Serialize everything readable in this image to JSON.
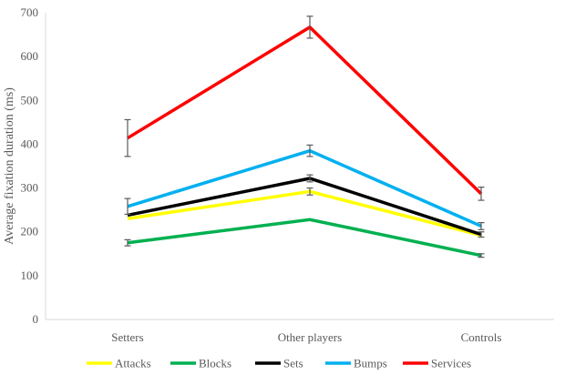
{
  "chart_data": {
    "type": "line",
    "title": "",
    "xlabel": "",
    "ylabel": "Average fixation duration (ms)",
    "categories": [
      "Setters",
      "Other players",
      "Controls"
    ],
    "ylim": [
      0,
      700
    ],
    "yticks": [
      0,
      100,
      200,
      300,
      400,
      500,
      600,
      700
    ],
    "grid": false,
    "legend_position": "bottom",
    "series": [
      {
        "name": "Attacks",
        "color": "#FFFF00",
        "values": [
          230,
          292,
          192
        ],
        "errors": [
          0,
          8,
          0
        ]
      },
      {
        "name": "Blocks",
        "color": "#00B050",
        "values": [
          175,
          228,
          146
        ],
        "errors": [
          7,
          0,
          4
        ]
      },
      {
        "name": "Sets",
        "color": "#000000",
        "values": [
          238,
          322,
          194
        ],
        "errors": [
          0,
          8,
          6
        ]
      },
      {
        "name": "Bumps",
        "color": "#00B0F0",
        "values": [
          258,
          385,
          213
        ],
        "errors": [
          18,
          13,
          8
        ]
      },
      {
        "name": "Services",
        "color": "#FF0000",
        "values": [
          414,
          667,
          287
        ],
        "errors": [
          42,
          25,
          15
        ]
      }
    ]
  }
}
